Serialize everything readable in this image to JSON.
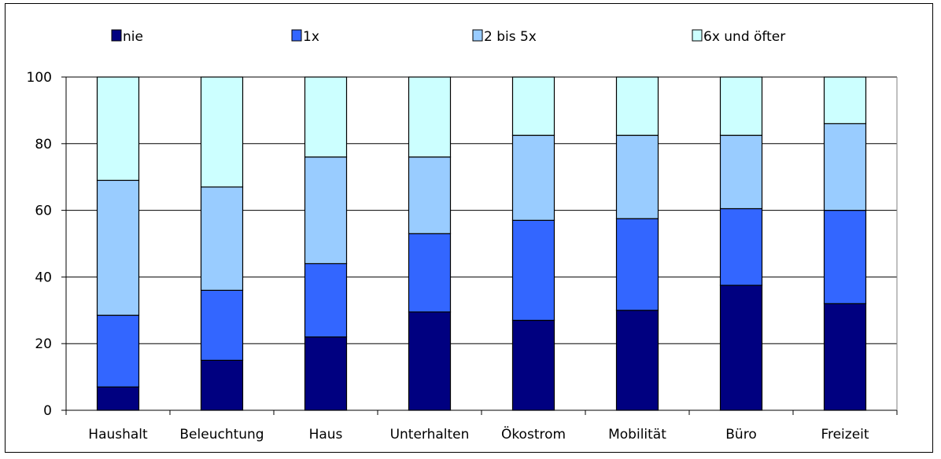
{
  "chart_data": {
    "type": "bar",
    "stacked": true,
    "title": "",
    "xlabel": "",
    "ylabel": "",
    "ylim": [
      0,
      100
    ],
    "yticks": [
      0,
      20,
      40,
      60,
      80,
      100
    ],
    "grid": true,
    "legend_position": "top",
    "categories": [
      "Haushalt",
      "Beleuchtung",
      "Haus",
      "Unterhalten",
      "Ökostrom",
      "Mobilität",
      "Büro",
      "Freizeit"
    ],
    "series": [
      {
        "name": "nie",
        "color": "#000080",
        "values": [
          7,
          15,
          22,
          29.5,
          27,
          30,
          37.5,
          32
        ]
      },
      {
        "name": "1x",
        "color": "#3366ff",
        "values": [
          21.5,
          21,
          22,
          23.5,
          30,
          27.5,
          23,
          28
        ]
      },
      {
        "name": "2 bis 5x",
        "color": "#99ccff",
        "values": [
          40.5,
          31,
          32,
          23,
          25.5,
          25,
          22,
          26
        ]
      },
      {
        "name": "6x und öfter",
        "color": "#ccffff",
        "values": [
          31,
          33,
          24,
          24,
          17.5,
          17.5,
          17.5,
          14
        ]
      }
    ]
  }
}
